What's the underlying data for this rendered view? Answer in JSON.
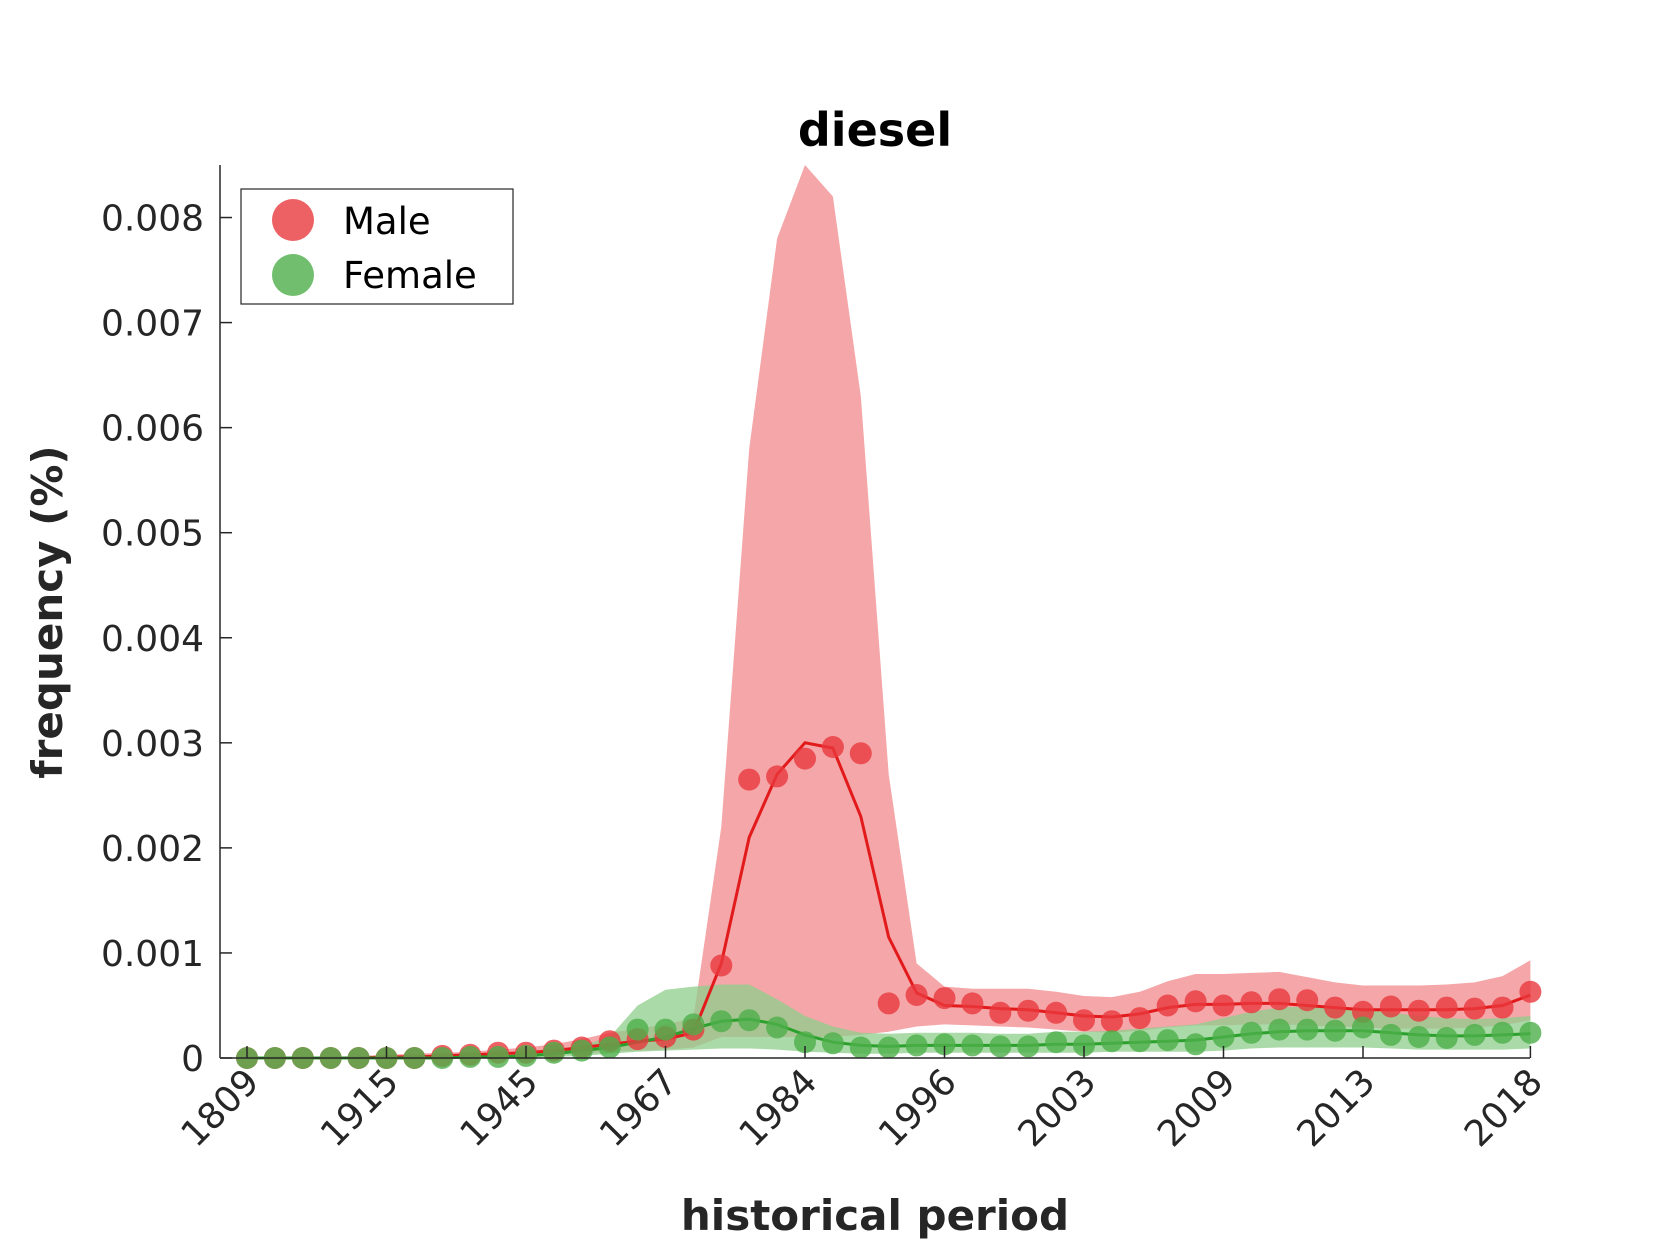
{
  "chart_data": {
    "type": "line",
    "title": "diesel",
    "xlabel": "historical period",
    "ylabel": "frequency (%)",
    "x_tick_labels": [
      "1809",
      "1915",
      "1945",
      "1967",
      "1984",
      "1996",
      "2003",
      "2009",
      "2013",
      "2018"
    ],
    "y_ticks": [
      0,
      0.001,
      0.002,
      0.003,
      0.004,
      0.005,
      0.006,
      0.007,
      0.008
    ],
    "y_tick_labels": [
      "0",
      "0.001",
      "0.002",
      "0.003",
      "0.004",
      "0.005",
      "0.006",
      "0.007",
      "0.008"
    ],
    "ylim": [
      0,
      0.0085
    ],
    "n_points": 47,
    "legend": {
      "position": "top-left",
      "entries": [
        "Male",
        "Female"
      ]
    },
    "grid": false,
    "series": [
      {
        "name": "Male",
        "color": "#e8383d",
        "line_color": "#e31a1c",
        "band_color": "#f0888b",
        "points": [
          0,
          0,
          0,
          0,
          0,
          0,
          0,
          2e-05,
          3e-05,
          5e-05,
          5e-05,
          7e-05,
          0.0001,
          0.00016,
          0.00018,
          0.0002,
          0.00027,
          0.00088,
          0.00265,
          0.00268,
          0.00285,
          0.00296,
          0.0029,
          0.00052,
          0.0006,
          0.00057,
          0.00052,
          0.00043,
          0.00045,
          0.00043,
          0.00036,
          0.00035,
          0.00038,
          0.0005,
          0.00054,
          0.0005,
          0.00053,
          0.00056,
          0.00055,
          0.00048,
          0.00044,
          0.00049,
          0.00045,
          0.00048,
          0.00047,
          0.00048,
          0.00063
        ],
        "line": [
          0,
          0,
          0,
          0,
          0,
          1e-05,
          1e-05,
          2e-05,
          3e-05,
          4e-05,
          5e-05,
          7e-05,
          0.0001,
          0.00013,
          0.00016,
          0.00018,
          0.00024,
          0.0009,
          0.0021,
          0.0027,
          0.003,
          0.00295,
          0.0023,
          0.00115,
          0.00062,
          0.0005,
          0.00049,
          0.00047,
          0.00046,
          0.00043,
          0.0004,
          0.00039,
          0.00042,
          0.00048,
          0.00051,
          0.00051,
          0.00052,
          0.00052,
          0.0005,
          0.00048,
          0.00046,
          0.00046,
          0.00046,
          0.00046,
          0.00047,
          0.0005,
          0.0006
        ],
        "band_upper": [
          0,
          0,
          1e-05,
          1e-05,
          2e-05,
          3e-05,
          4e-05,
          5e-05,
          6e-05,
          8e-05,
          0.0001,
          0.00013,
          0.00018,
          0.00024,
          0.00028,
          0.00032,
          0.00038,
          0.0022,
          0.0058,
          0.0078,
          0.0085,
          0.0082,
          0.0063,
          0.0027,
          0.0009,
          0.00068,
          0.00066,
          0.00066,
          0.00066,
          0.00063,
          0.00059,
          0.00058,
          0.00063,
          0.00073,
          0.0008,
          0.0008,
          0.00081,
          0.00082,
          0.00077,
          0.00072,
          0.00069,
          0.00069,
          0.00069,
          0.0007,
          0.00072,
          0.00078,
          0.00093
        ],
        "band_lower": [
          0,
          0,
          0,
          0,
          0,
          0,
          0,
          0,
          0,
          1e-05,
          2e-05,
          3e-05,
          4e-05,
          6e-05,
          7e-05,
          8e-05,
          0.0001,
          0.0002,
          0.0002,
          0.0002,
          0.0002,
          0.0002,
          0.00022,
          0.00025,
          0.0003,
          0.00032,
          0.00031,
          0.0003,
          0.00029,
          0.00027,
          0.00025,
          0.00024,
          0.00026,
          0.00029,
          0.00031,
          0.00031,
          0.00032,
          0.00032,
          0.00031,
          0.0003,
          0.00029,
          0.00028,
          0.00028,
          0.00028,
          0.00029,
          0.00031,
          0.00036
        ]
      },
      {
        "name": "Female",
        "color": "#4daf4a",
        "line_color": "#2ca02c",
        "band_color": "#8fce8c",
        "points": [
          0,
          0,
          0,
          0,
          0,
          0,
          0,
          0,
          1e-05,
          1e-05,
          2e-05,
          5e-05,
          7e-05,
          0.0001,
          0.00027,
          0.00027,
          0.00032,
          0.00035,
          0.00036,
          0.00029,
          0.00015,
          0.00014,
          0.0001,
          0.0001,
          0.00012,
          0.00013,
          0.00012,
          0.00011,
          0.00011,
          0.00015,
          0.00012,
          0.00016,
          0.00016,
          0.00017,
          0.00013,
          0.0002,
          0.00024,
          0.00027,
          0.00027,
          0.00026,
          0.00029,
          0.00022,
          0.0002,
          0.00019,
          0.00022,
          0.00024,
          0.00024
        ],
        "line": [
          0,
          0,
          0,
          0,
          0,
          0,
          0,
          0,
          1e-05,
          1e-05,
          2e-05,
          4e-05,
          7e-05,
          0.0001,
          0.00015,
          0.0002,
          0.00028,
          0.00035,
          0.00037,
          0.00032,
          0.00022,
          0.00015,
          0.00012,
          0.00011,
          0.00012,
          0.00012,
          0.00012,
          0.00012,
          0.00012,
          0.00013,
          0.00013,
          0.00014,
          0.00015,
          0.00016,
          0.00017,
          0.0002,
          0.00023,
          0.00025,
          0.00026,
          0.00026,
          0.00026,
          0.00024,
          0.00022,
          0.00021,
          0.00021,
          0.00022,
          0.00023
        ],
        "band_upper": [
          0,
          0,
          0,
          0,
          0,
          0,
          0,
          0,
          1e-05,
          2e-05,
          4e-05,
          8e-05,
          0.00012,
          0.0002,
          0.0005,
          0.00065,
          0.00068,
          0.0007,
          0.0007,
          0.00056,
          0.0004,
          0.0003,
          0.00024,
          0.00023,
          0.00024,
          0.00024,
          0.00024,
          0.00023,
          0.00023,
          0.00025,
          0.00025,
          0.00026,
          0.00028,
          0.0003,
          0.00032,
          0.00038,
          0.00044,
          0.00048,
          0.00049,
          0.00048,
          0.00047,
          0.00043,
          0.0004,
          0.00038,
          0.00037,
          0.00038,
          0.0004
        ],
        "band_lower": [
          0,
          0,
          0,
          0,
          0,
          0,
          0,
          0,
          0,
          0,
          0,
          1e-05,
          2e-05,
          4e-05,
          6e-05,
          7e-05,
          8e-05,
          9e-05,
          9e-05,
          8e-05,
          6e-05,
          5e-05,
          4e-05,
          4e-05,
          5e-05,
          5e-05,
          5e-05,
          5e-05,
          5e-05,
          5e-05,
          5e-05,
          6e-05,
          6e-05,
          6e-05,
          6e-05,
          7e-05,
          9e-05,
          0.0001,
          0.0001,
          0.0001,
          0.0001,
          9e-05,
          8e-05,
          8e-05,
          8e-05,
          8e-05,
          9e-05
        ]
      }
    ]
  }
}
